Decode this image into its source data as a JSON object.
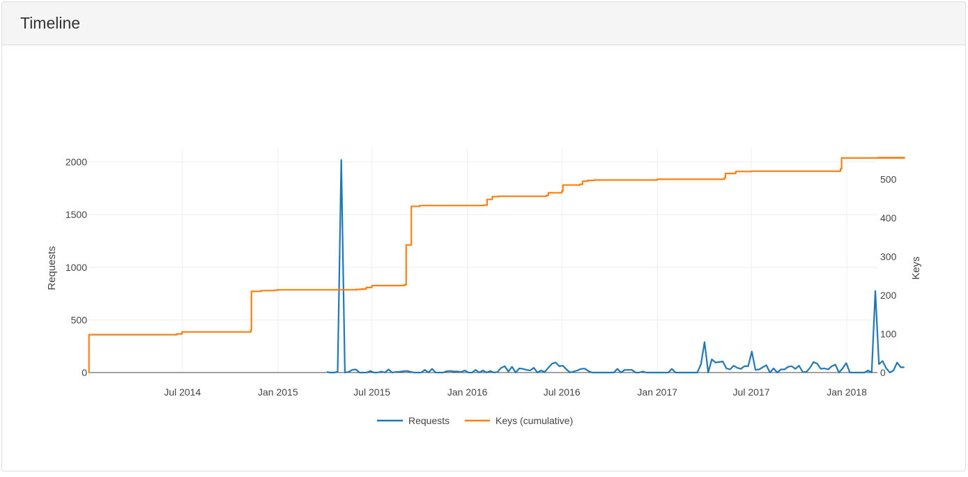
{
  "panel": {
    "title": "Timeline"
  },
  "colors": {
    "requests": "#1f77b4",
    "keys": "#ff7f0e",
    "grid": "#eeeeee",
    "text": "#444444"
  },
  "chart_data": {
    "type": "line",
    "title": "",
    "x_ticks": [
      {
        "date": "2014-07-01",
        "label": "Jul 2014"
      },
      {
        "date": "2015-01-01",
        "label": "Jan 2015"
      },
      {
        "date": "2015-07-01",
        "label": "Jul 2015"
      },
      {
        "date": "2016-01-01",
        "label": "Jan 2016"
      },
      {
        "date": "2016-07-01",
        "label": "Jul 2016"
      },
      {
        "date": "2017-01-01",
        "label": "Jan 2017"
      },
      {
        "date": "2017-07-01",
        "label": "Jul 2017"
      },
      {
        "date": "2018-01-01",
        "label": "Jan 2018"
      }
    ],
    "xlim": [
      "2014-01-01",
      "2018-03-01"
    ],
    "y_left": {
      "label": "Requests",
      "range": [
        0,
        2130
      ],
      "ticks": [
        0,
        500,
        1000,
        1500,
        2000
      ]
    },
    "y_right": {
      "label": "Keys",
      "range": [
        0,
        580
      ],
      "ticks": [
        0,
        100,
        200,
        300,
        400,
        500
      ]
    },
    "legend": {
      "placement": "bottom-center"
    },
    "series": [
      {
        "name": "Requests",
        "axis": "left",
        "points": [
          [
            "2015-04-05",
            5
          ],
          [
            "2015-04-12",
            0
          ],
          [
            "2015-04-19",
            0
          ],
          [
            "2015-04-26",
            8
          ],
          [
            "2015-05-03",
            2020
          ],
          [
            "2015-05-10",
            0
          ],
          [
            "2015-05-17",
            5
          ],
          [
            "2015-05-24",
            25
          ],
          [
            "2015-05-31",
            30
          ],
          [
            "2015-06-07",
            0
          ],
          [
            "2015-06-14",
            0
          ],
          [
            "2015-06-21",
            0
          ],
          [
            "2015-06-28",
            15
          ],
          [
            "2015-07-05",
            0
          ],
          [
            "2015-07-12",
            0
          ],
          [
            "2015-07-19",
            10
          ],
          [
            "2015-07-26",
            0
          ],
          [
            "2015-08-02",
            30
          ],
          [
            "2015-08-09",
            0
          ],
          [
            "2015-08-16",
            5
          ],
          [
            "2015-08-23",
            8
          ],
          [
            "2015-08-30",
            12
          ],
          [
            "2015-09-06",
            15
          ],
          [
            "2015-09-13",
            8
          ],
          [
            "2015-09-20",
            0
          ],
          [
            "2015-09-27",
            0
          ],
          [
            "2015-10-04",
            0
          ],
          [
            "2015-10-11",
            25
          ],
          [
            "2015-10-18",
            0
          ],
          [
            "2015-10-25",
            35
          ],
          [
            "2015-11-01",
            0
          ],
          [
            "2015-11-08",
            0
          ],
          [
            "2015-11-15",
            0
          ],
          [
            "2015-11-22",
            12
          ],
          [
            "2015-11-29",
            15
          ],
          [
            "2015-12-06",
            10
          ],
          [
            "2015-12-13",
            10
          ],
          [
            "2015-12-20",
            5
          ],
          [
            "2015-12-27",
            20
          ],
          [
            "2016-01-03",
            0
          ],
          [
            "2016-01-10",
            0
          ],
          [
            "2016-01-17",
            25
          ],
          [
            "2016-01-24",
            0
          ],
          [
            "2016-01-31",
            20
          ],
          [
            "2016-02-07",
            0
          ],
          [
            "2016-02-14",
            15
          ],
          [
            "2016-02-21",
            0
          ],
          [
            "2016-02-28",
            5
          ],
          [
            "2016-03-06",
            45
          ],
          [
            "2016-03-13",
            60
          ],
          [
            "2016-03-20",
            10
          ],
          [
            "2016-03-27",
            55
          ],
          [
            "2016-04-03",
            0
          ],
          [
            "2016-04-10",
            40
          ],
          [
            "2016-04-17",
            35
          ],
          [
            "2016-04-24",
            25
          ],
          [
            "2016-05-01",
            20
          ],
          [
            "2016-05-08",
            45
          ],
          [
            "2016-05-15",
            0
          ],
          [
            "2016-05-22",
            20
          ],
          [
            "2016-05-29",
            5
          ],
          [
            "2016-06-05",
            45
          ],
          [
            "2016-06-12",
            85
          ],
          [
            "2016-06-19",
            95
          ],
          [
            "2016-06-26",
            60
          ],
          [
            "2016-07-03",
            65
          ],
          [
            "2016-07-10",
            30
          ],
          [
            "2016-07-17",
            0
          ],
          [
            "2016-07-24",
            10
          ],
          [
            "2016-07-31",
            20
          ],
          [
            "2016-08-07",
            35
          ],
          [
            "2016-08-14",
            38
          ],
          [
            "2016-08-21",
            15
          ],
          [
            "2016-08-28",
            0
          ],
          [
            "2016-09-04",
            0
          ],
          [
            "2016-09-11",
            0
          ],
          [
            "2016-09-18",
            0
          ],
          [
            "2016-09-25",
            0
          ],
          [
            "2016-10-02",
            0
          ],
          [
            "2016-10-09",
            0
          ],
          [
            "2016-10-16",
            35
          ],
          [
            "2016-10-23",
            0
          ],
          [
            "2016-10-30",
            25
          ],
          [
            "2016-11-06",
            25
          ],
          [
            "2016-11-13",
            25
          ],
          [
            "2016-11-20",
            0
          ],
          [
            "2016-11-27",
            0
          ],
          [
            "2016-12-04",
            10
          ],
          [
            "2016-12-11",
            0
          ],
          [
            "2016-12-18",
            0
          ],
          [
            "2016-12-25",
            0
          ],
          [
            "2017-01-01",
            0
          ],
          [
            "2017-01-08",
            0
          ],
          [
            "2017-01-15",
            0
          ],
          [
            "2017-01-22",
            0
          ],
          [
            "2017-01-29",
            35
          ],
          [
            "2017-02-05",
            0
          ],
          [
            "2017-02-12",
            0
          ],
          [
            "2017-02-19",
            0
          ],
          [
            "2017-02-26",
            0
          ],
          [
            "2017-03-05",
            0
          ],
          [
            "2017-03-12",
            0
          ],
          [
            "2017-03-19",
            0
          ],
          [
            "2017-03-26",
            80
          ],
          [
            "2017-04-02",
            290
          ],
          [
            "2017-04-09",
            0
          ],
          [
            "2017-04-16",
            125
          ],
          [
            "2017-04-23",
            95
          ],
          [
            "2017-04-30",
            100
          ],
          [
            "2017-05-07",
            105
          ],
          [
            "2017-05-14",
            40
          ],
          [
            "2017-05-21",
            30
          ],
          [
            "2017-05-28",
            65
          ],
          [
            "2017-06-04",
            45
          ],
          [
            "2017-06-11",
            35
          ],
          [
            "2017-06-18",
            60
          ],
          [
            "2017-06-25",
            60
          ],
          [
            "2017-07-02",
            200
          ],
          [
            "2017-07-09",
            25
          ],
          [
            "2017-07-16",
            30
          ],
          [
            "2017-07-23",
            50
          ],
          [
            "2017-07-30",
            70
          ],
          [
            "2017-08-06",
            0
          ],
          [
            "2017-08-13",
            40
          ],
          [
            "2017-08-20",
            0
          ],
          [
            "2017-08-27",
            30
          ],
          [
            "2017-09-03",
            30
          ],
          [
            "2017-09-10",
            55
          ],
          [
            "2017-09-17",
            60
          ],
          [
            "2017-09-24",
            35
          ],
          [
            "2017-10-01",
            65
          ],
          [
            "2017-10-08",
            5
          ],
          [
            "2017-10-15",
            5
          ],
          [
            "2017-10-22",
            45
          ],
          [
            "2017-10-29",
            100
          ],
          [
            "2017-11-05",
            85
          ],
          [
            "2017-11-12",
            35
          ],
          [
            "2017-11-19",
            40
          ],
          [
            "2017-11-26",
            30
          ],
          [
            "2017-12-03",
            60
          ],
          [
            "2017-12-10",
            75
          ],
          [
            "2017-12-17",
            0
          ],
          [
            "2017-12-24",
            40
          ],
          [
            "2017-12-31",
            90
          ],
          [
            "2018-01-07",
            0
          ],
          [
            "2018-01-14",
            0
          ],
          [
            "2018-01-21",
            0
          ],
          [
            "2018-01-28",
            0
          ],
          [
            "2018-02-04",
            0
          ],
          [
            "2018-02-11",
            20
          ],
          [
            "2018-02-18",
            0
          ],
          [
            "2018-02-25",
            775
          ],
          [
            "2018-03-04",
            80
          ],
          [
            "2018-03-11",
            110
          ],
          [
            "2018-03-18",
            40
          ],
          [
            "2018-03-25",
            0
          ],
          [
            "2018-04-01",
            20
          ],
          [
            "2018-04-08",
            95
          ],
          [
            "2018-04-15",
            50
          ],
          [
            "2018-04-22",
            50
          ]
        ]
      },
      {
        "name": "Keys (cumulative)",
        "axis": "right",
        "step": true,
        "points": [
          [
            "2014-01-01",
            0
          ],
          [
            "2014-01-02",
            98
          ],
          [
            "2014-06-10",
            98
          ],
          [
            "2014-06-20",
            100
          ],
          [
            "2014-06-30",
            105
          ],
          [
            "2014-11-10",
            110
          ],
          [
            "2014-11-11",
            210
          ],
          [
            "2014-11-30",
            212
          ],
          [
            "2014-12-25",
            213
          ],
          [
            "2015-01-01",
            214
          ],
          [
            "2015-06-01",
            215
          ],
          [
            "2015-06-10",
            216
          ],
          [
            "2015-06-20",
            220
          ],
          [
            "2015-07-01",
            225
          ],
          [
            "2015-09-01",
            227
          ],
          [
            "2015-09-05",
            330
          ],
          [
            "2015-09-15",
            430
          ],
          [
            "2015-10-01",
            432
          ],
          [
            "2016-02-01",
            433
          ],
          [
            "2016-02-08",
            448
          ],
          [
            "2016-02-18",
            455
          ],
          [
            "2016-03-01",
            456
          ],
          [
            "2016-06-01",
            458
          ],
          [
            "2016-06-05",
            465
          ],
          [
            "2016-07-01",
            470
          ],
          [
            "2016-07-03",
            485
          ],
          [
            "2016-08-05",
            487
          ],
          [
            "2016-08-10",
            495
          ],
          [
            "2016-08-20",
            497
          ],
          [
            "2016-09-01",
            498
          ],
          [
            "2017-01-01",
            500
          ],
          [
            "2017-05-10",
            503
          ],
          [
            "2017-05-12",
            515
          ],
          [
            "2017-06-01",
            520
          ],
          [
            "2017-07-01",
            521
          ],
          [
            "2017-12-20",
            527
          ],
          [
            "2017-12-22",
            555
          ],
          [
            "2018-04-22",
            556
          ]
        ]
      }
    ]
  }
}
